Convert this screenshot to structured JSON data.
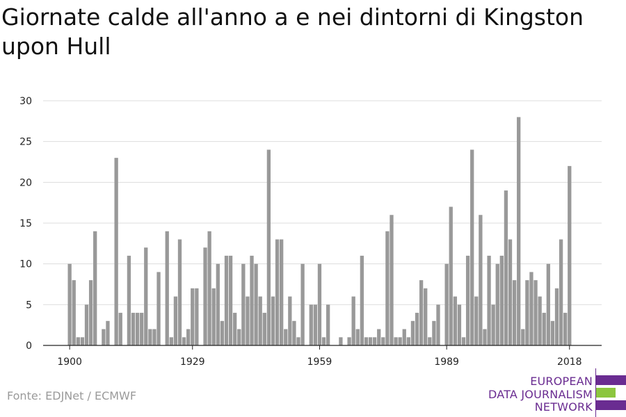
{
  "title": "Giornate calde all'anno a e nei dintorni di Kingston upon Hull",
  "source": "Fonte: EDJNet / ECMWF",
  "logo": {
    "line1": "EUROPEAN",
    "line2": "DATA JOURNALISM",
    "line3": "NETWORK",
    "color_purple": "#6a2c91",
    "color_green": "#8cc63f"
  },
  "colors": {
    "bar": "#999999",
    "grid": "#dddddd",
    "axis": "#222222"
  },
  "chart_data": {
    "type": "bar",
    "title": "Giornate calde all'anno a e nei dintorni di Kingston upon Hull",
    "xlabel": "",
    "ylabel": "",
    "ylim": [
      0,
      30
    ],
    "yticks": [
      0,
      5,
      10,
      15,
      20,
      25,
      30
    ],
    "xticks": [
      1900,
      1929,
      1959,
      1989,
      2018
    ],
    "grid": true,
    "x_start": 1900,
    "x": [
      1900,
      1901,
      1902,
      1903,
      1904,
      1905,
      1906,
      1907,
      1908,
      1909,
      1910,
      1911,
      1912,
      1913,
      1914,
      1915,
      1916,
      1917,
      1918,
      1919,
      1920,
      1921,
      1922,
      1923,
      1924,
      1925,
      1926,
      1927,
      1928,
      1929,
      1930,
      1931,
      1932,
      1933,
      1934,
      1935,
      1936,
      1937,
      1938,
      1939,
      1940,
      1941,
      1942,
      1943,
      1944,
      1945,
      1946,
      1947,
      1948,
      1949,
      1950,
      1951,
      1952,
      1953,
      1954,
      1955,
      1956,
      1957,
      1958,
      1959,
      1960,
      1961,
      1962,
      1963,
      1964,
      1965,
      1966,
      1967,
      1968,
      1969,
      1970,
      1971,
      1972,
      1973,
      1974,
      1975,
      1976,
      1977,
      1978,
      1979,
      1980,
      1981,
      1982,
      1983,
      1984,
      1985,
      1986,
      1987,
      1988,
      1989,
      1990,
      1991,
      1992,
      1993,
      1994,
      1995,
      1996,
      1997,
      1998,
      1999,
      2000,
      2001,
      2002,
      2003,
      2004,
      2005,
      2006,
      2007,
      2008,
      2009,
      2010,
      2011,
      2012,
      2013,
      2014,
      2015,
      2016,
      2017,
      2018
    ],
    "values": [
      10,
      8,
      1,
      1,
      5,
      8,
      14,
      0,
      2,
      3,
      0,
      23,
      4,
      0,
      11,
      4,
      4,
      4,
      12,
      2,
      2,
      9,
      0,
      14,
      1,
      6,
      13,
      1,
      2,
      7,
      7,
      0,
      12,
      14,
      7,
      10,
      3,
      11,
      11,
      4,
      2,
      10,
      6,
      11,
      10,
      6,
      4,
      24,
      6,
      13,
      13,
      2,
      6,
      3,
      1,
      10,
      0,
      5,
      5,
      10,
      1,
      5,
      0,
      0,
      1,
      0,
      1,
      6,
      2,
      11,
      1,
      1,
      1,
      2,
      1,
      14,
      16,
      1,
      1,
      2,
      1,
      3,
      4,
      8,
      7,
      1,
      3,
      5,
      0,
      10,
      17,
      6,
      5,
      1,
      11,
      24,
      6,
      16,
      2,
      11,
      5,
      10,
      11,
      19,
      13,
      8,
      28,
      2,
      8,
      9,
      8,
      6,
      4,
      10,
      3,
      7,
      13,
      4,
      22
    ]
  }
}
